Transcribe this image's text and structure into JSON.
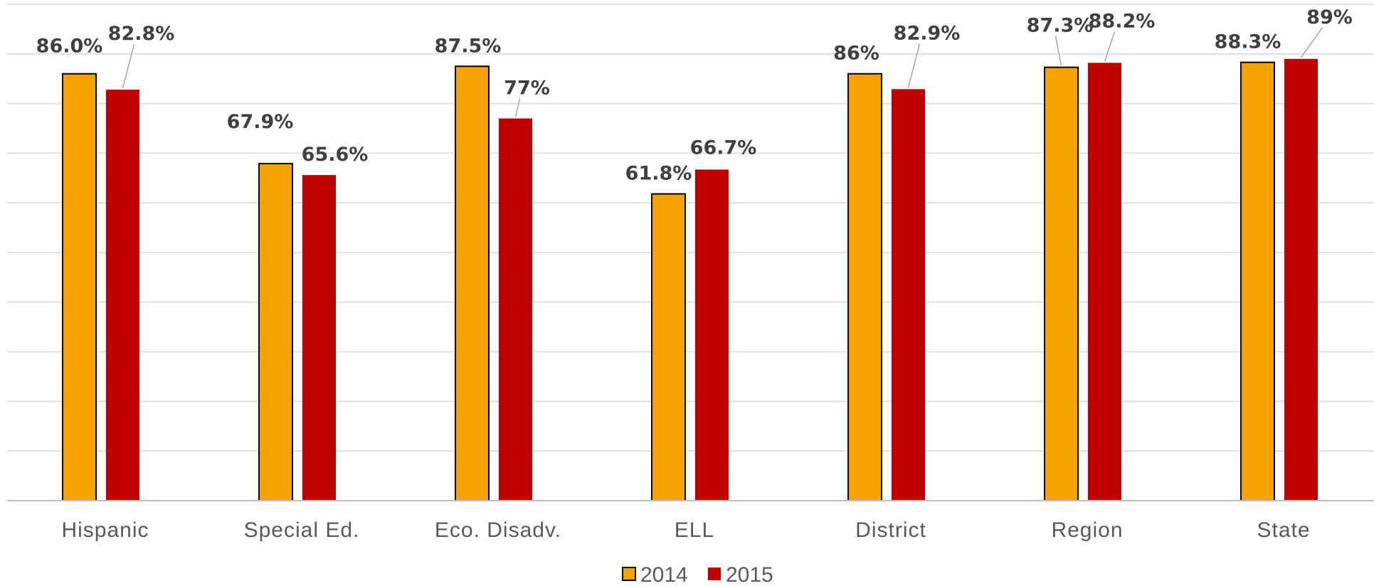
{
  "chart_data": {
    "type": "bar",
    "categories": [
      "Hispanic",
      "Special Ed.",
      "Eco. Disadv.",
      "ELL",
      "District",
      "Region",
      "State"
    ],
    "series": [
      {
        "name": "2014",
        "color": "#f4a300",
        "outline": "#000000",
        "values": [
          86.0,
          67.9,
          87.5,
          61.8,
          86.0,
          87.3,
          88.3
        ],
        "labels": [
          "86.0%",
          "67.9%",
          "87.5%",
          "61.8%",
          "86%",
          "87.3%",
          "88.3%"
        ]
      },
      {
        "name": "2015",
        "color": "#c00000",
        "values": [
          82.8,
          65.6,
          77.0,
          66.7,
          82.9,
          88.2,
          89.0
        ],
        "labels": [
          "82.8%",
          "65.6%",
          "77%",
          "66.7%",
          "82.9%",
          "88.2%",
          "89%"
        ]
      }
    ],
    "ylim": [
      0,
      100
    ],
    "grid": true,
    "legend_position": "bottom"
  }
}
